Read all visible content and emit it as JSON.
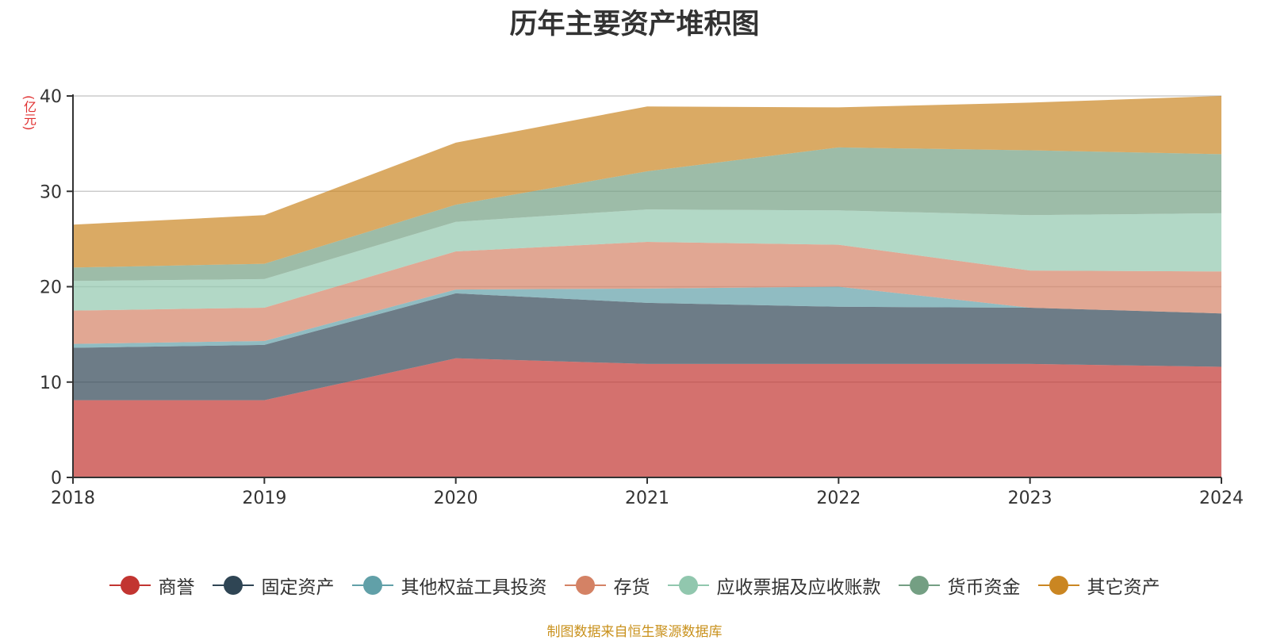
{
  "chart_data": {
    "type": "area",
    "stacked": true,
    "title": "历年主要资产堆积图",
    "ylabel": "(亿元)",
    "x": [
      "2018",
      "2019",
      "2020",
      "2021",
      "2022",
      "2023",
      "2024"
    ],
    "ylim": [
      0,
      40
    ],
    "yticks": [
      0,
      10,
      20,
      30,
      40
    ],
    "grid": true,
    "legend": "bottom",
    "series": [
      {
        "name": "商誉",
        "color": "#c23531",
        "values": [
          8.1,
          8.1,
          12.5,
          11.9,
          11.9,
          11.9,
          11.6
        ]
      },
      {
        "name": "固定资产",
        "color": "#2f4554",
        "values": [
          5.5,
          5.8,
          6.8,
          6.4,
          6.0,
          5.9,
          5.6
        ]
      },
      {
        "name": "其他权益工具投资",
        "color": "#61a0a8",
        "values": [
          0.4,
          0.4,
          0.4,
          1.5,
          2.1,
          0.0,
          0.0
        ]
      },
      {
        "name": "存货",
        "color": "#d48265",
        "values": [
          3.5,
          3.5,
          4.0,
          4.9,
          4.4,
          3.9,
          4.4
        ]
      },
      {
        "name": "应收票据及应收账款",
        "color": "#91c7ae",
        "values": [
          3.1,
          3.0,
          3.1,
          3.4,
          3.6,
          5.8,
          6.1
        ]
      },
      {
        "name": "货币资金",
        "color": "#749f83",
        "values": [
          1.4,
          1.6,
          1.8,
          4.0,
          6.6,
          6.8,
          6.2
        ]
      },
      {
        "name": "其它资产",
        "color": "#ca8622",
        "values": [
          4.5,
          5.1,
          6.5,
          6.8,
          4.2,
          5.0,
          6.1
        ]
      }
    ]
  },
  "footer": {
    "source": "制图数据来自恒生聚源数据库"
  }
}
